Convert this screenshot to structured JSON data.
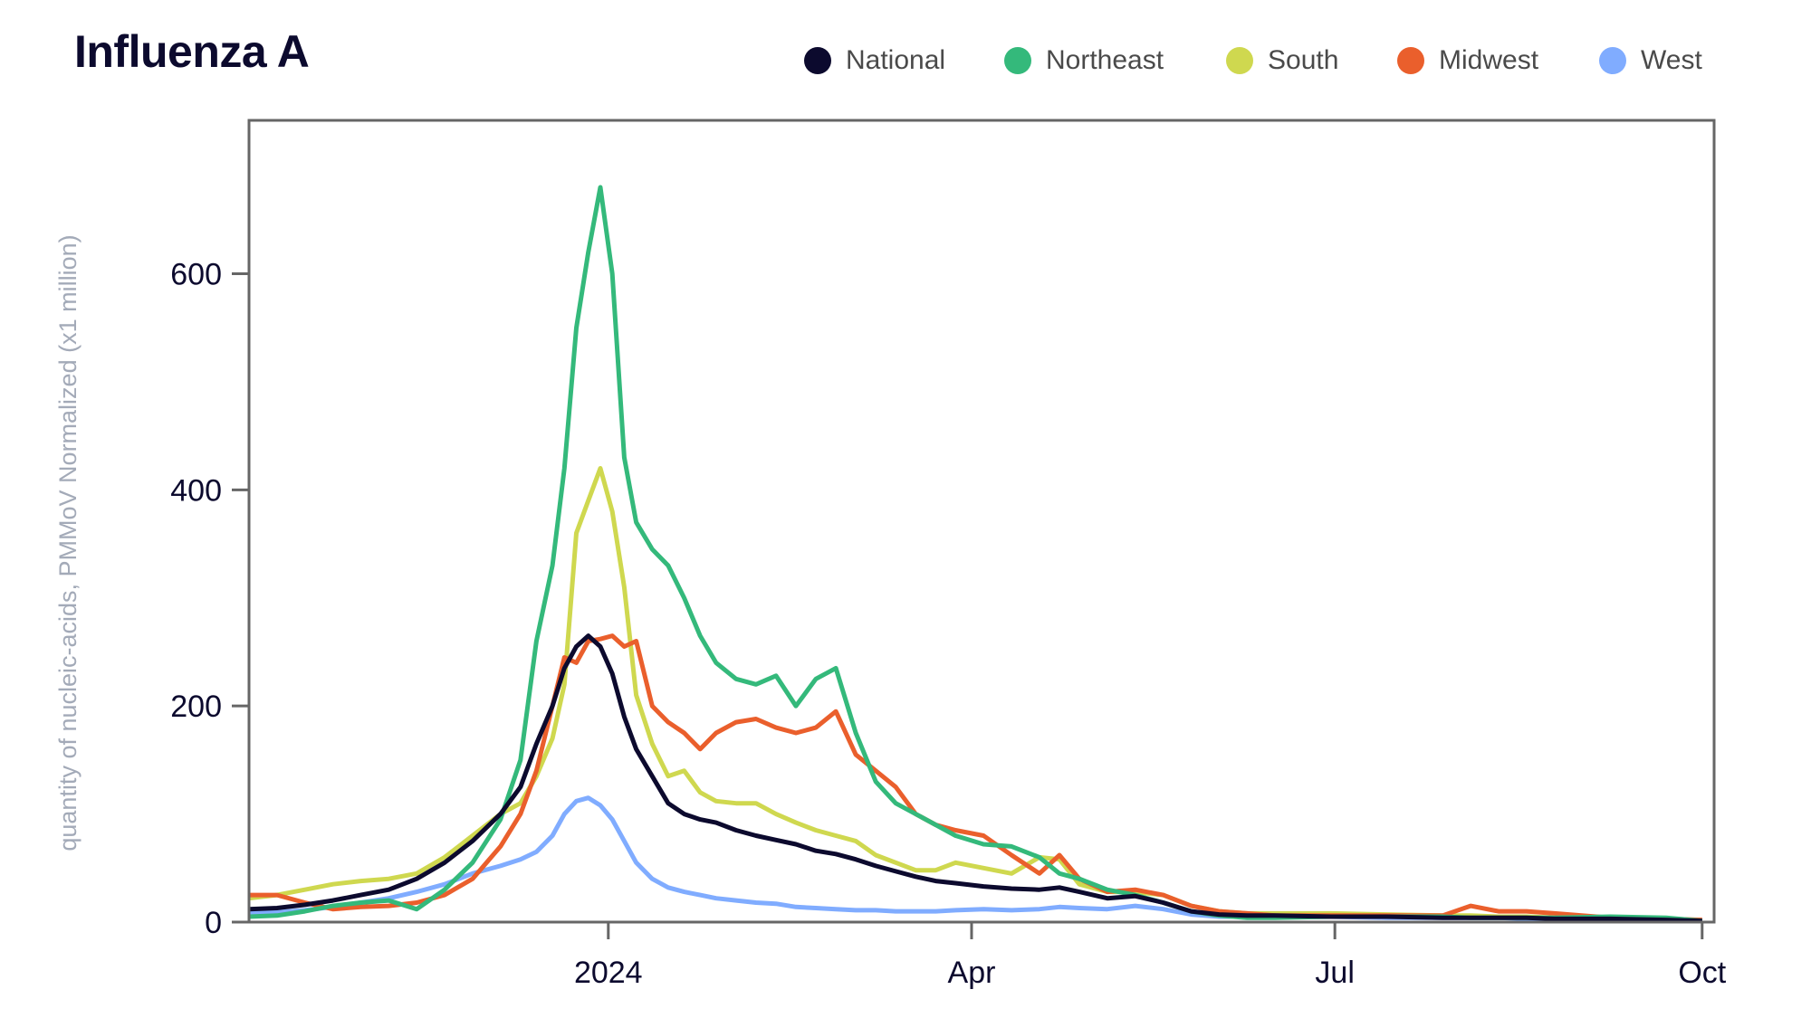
{
  "title": "Influenza A",
  "chart_data": {
    "type": "line",
    "title": "Influenza A",
    "xlabel": "",
    "ylabel": "quantity of nucleic-acids, PMMoV Normalized (x1 million)",
    "xlim": [
      "2023-10-03",
      "2024-10-04"
    ],
    "ylim": [
      0,
      742
    ],
    "yticks": [
      0,
      200,
      400,
      600
    ],
    "ytick_labels": [
      "0",
      "200",
      "400",
      "600"
    ],
    "xticks": [
      "2024-01-01",
      "2024-04-01",
      "2024-07-01",
      "2024-10-01"
    ],
    "xtick_labels": [
      "2024",
      "Apr",
      "Jul",
      "Oct"
    ],
    "grid": false,
    "legend_position": "top-right",
    "x": [
      "2023-10-03",
      "2023-10-10",
      "2023-10-17",
      "2023-10-24",
      "2023-10-31",
      "2023-11-07",
      "2023-11-14",
      "2023-11-21",
      "2023-11-28",
      "2023-12-05",
      "2023-12-10",
      "2023-12-14",
      "2023-12-18",
      "2023-12-21",
      "2023-12-24",
      "2023-12-27",
      "2023-12-30",
      "2024-01-02",
      "2024-01-05",
      "2024-01-08",
      "2024-01-12",
      "2024-01-16",
      "2024-01-20",
      "2024-01-24",
      "2024-01-28",
      "2024-02-02",
      "2024-02-07",
      "2024-02-12",
      "2024-02-17",
      "2024-02-22",
      "2024-02-27",
      "2024-03-03",
      "2024-03-08",
      "2024-03-13",
      "2024-03-18",
      "2024-03-23",
      "2024-03-28",
      "2024-04-04",
      "2024-04-11",
      "2024-04-18",
      "2024-04-23",
      "2024-04-28",
      "2024-05-05",
      "2024-05-12",
      "2024-05-19",
      "2024-05-26",
      "2024-06-02",
      "2024-06-09",
      "2024-06-16",
      "2024-06-30",
      "2024-07-14",
      "2024-07-28",
      "2024-08-04",
      "2024-08-11",
      "2024-08-18",
      "2024-08-25",
      "2024-09-08",
      "2024-09-22",
      "2024-10-01"
    ],
    "series": [
      {
        "name": "National",
        "color": "#0c0a2e",
        "values": [
          12,
          13,
          16,
          20,
          25,
          30,
          40,
          55,
          75,
          100,
          125,
          165,
          200,
          235,
          255,
          265,
          255,
          230,
          190,
          160,
          135,
          110,
          100,
          95,
          92,
          85,
          80,
          76,
          72,
          66,
          63,
          58,
          52,
          47,
          42,
          38,
          36,
          33,
          31,
          30,
          32,
          28,
          22,
          24,
          18,
          10,
          7,
          6,
          6,
          5,
          5,
          4,
          4,
          4,
          4,
          3,
          3,
          2,
          1
        ]
      },
      {
        "name": "Northeast",
        "color": "#34b97b",
        "values": [
          5,
          6,
          10,
          15,
          18,
          20,
          12,
          30,
          55,
          95,
          150,
          260,
          330,
          420,
          550,
          620,
          680,
          600,
          430,
          370,
          345,
          330,
          300,
          265,
          240,
          225,
          220,
          228,
          200,
          225,
          235,
          175,
          130,
          110,
          100,
          90,
          80,
          72,
          70,
          60,
          45,
          40,
          30,
          25,
          18,
          10,
          6,
          4,
          4,
          5,
          5,
          5,
          4,
          4,
          4,
          4,
          5,
          4,
          1
        ]
      },
      {
        "name": "South",
        "color": "#cfd84f",
        "values": [
          22,
          25,
          30,
          35,
          38,
          40,
          45,
          60,
          80,
          100,
          110,
          135,
          170,
          220,
          360,
          390,
          420,
          380,
          310,
          210,
          165,
          135,
          140,
          120,
          112,
          110,
          110,
          100,
          92,
          85,
          80,
          75,
          62,
          55,
          48,
          48,
          55,
          50,
          45,
          60,
          58,
          35,
          28,
          28,
          25,
          15,
          10,
          8,
          8,
          8,
          7,
          6,
          6,
          5,
          5,
          4,
          3,
          3,
          1
        ]
      },
      {
        "name": "Midwest",
        "color": "#ea5f2c",
        "values": [
          25,
          25,
          18,
          12,
          14,
          15,
          18,
          25,
          40,
          70,
          100,
          140,
          200,
          245,
          240,
          260,
          262,
          265,
          255,
          260,
          200,
          185,
          175,
          160,
          175,
          185,
          188,
          180,
          175,
          180,
          195,
          155,
          140,
          125,
          100,
          90,
          85,
          80,
          62,
          45,
          62,
          40,
          28,
          30,
          25,
          15,
          10,
          8,
          6,
          6,
          6,
          6,
          15,
          10,
          10,
          8,
          4,
          3,
          2
        ]
      },
      {
        "name": "West",
        "color": "#80acff",
        "values": [
          8,
          9,
          11,
          14,
          18,
          22,
          28,
          35,
          45,
          52,
          58,
          65,
          80,
          100,
          112,
          115,
          108,
          95,
          75,
          55,
          40,
          32,
          28,
          25,
          22,
          20,
          18,
          17,
          14,
          13,
          12,
          11,
          11,
          10,
          10,
          10,
          11,
          12,
          11,
          12,
          14,
          13,
          12,
          15,
          12,
          7,
          5,
          5,
          5,
          5,
          4,
          4,
          4,
          4,
          3,
          3,
          3,
          2,
          1
        ]
      }
    ]
  }
}
